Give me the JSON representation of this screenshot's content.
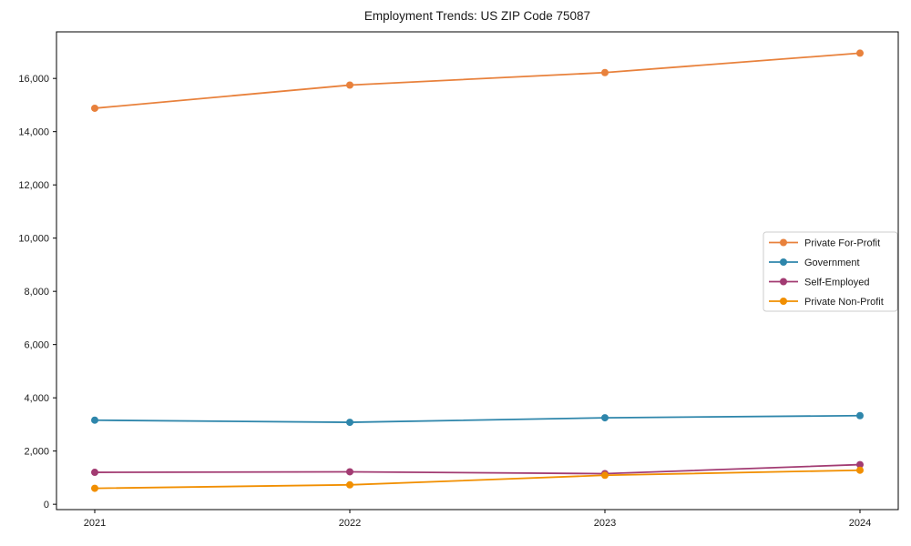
{
  "chart_data": {
    "type": "line",
    "title": "Employment Trends: US ZIP Code 75087",
    "xlabel": "",
    "ylabel": "",
    "x": [
      2021,
      2022,
      2023,
      2024
    ],
    "x_tick_labels": [
      "2021",
      "2022",
      "2023",
      "2024"
    ],
    "series": [
      {
        "name": "Private For-Profit",
        "color": "#e8813c",
        "values": [
          14880,
          15750,
          16220,
          16950
        ]
      },
      {
        "name": "Government",
        "color": "#2e86ab",
        "values": [
          3160,
          3080,
          3250,
          3330
        ]
      },
      {
        "name": "Self-Employed",
        "color": "#a23b72",
        "values": [
          1200,
          1220,
          1150,
          1490
        ]
      },
      {
        "name": "Private Non-Profit",
        "color": "#f18f01",
        "values": [
          600,
          730,
          1090,
          1280
        ]
      }
    ],
    "yticks": [
      0,
      2000,
      4000,
      6000,
      8000,
      10000,
      12000,
      14000,
      16000
    ],
    "ylim": [
      -200,
      17750
    ],
    "grid": false,
    "legend_position": "center right",
    "marker": "circle",
    "text_color": "#1a1a1a",
    "axis_color": "#000000",
    "legend_border_color": "#cccccc",
    "background_color": "#ffffff"
  }
}
